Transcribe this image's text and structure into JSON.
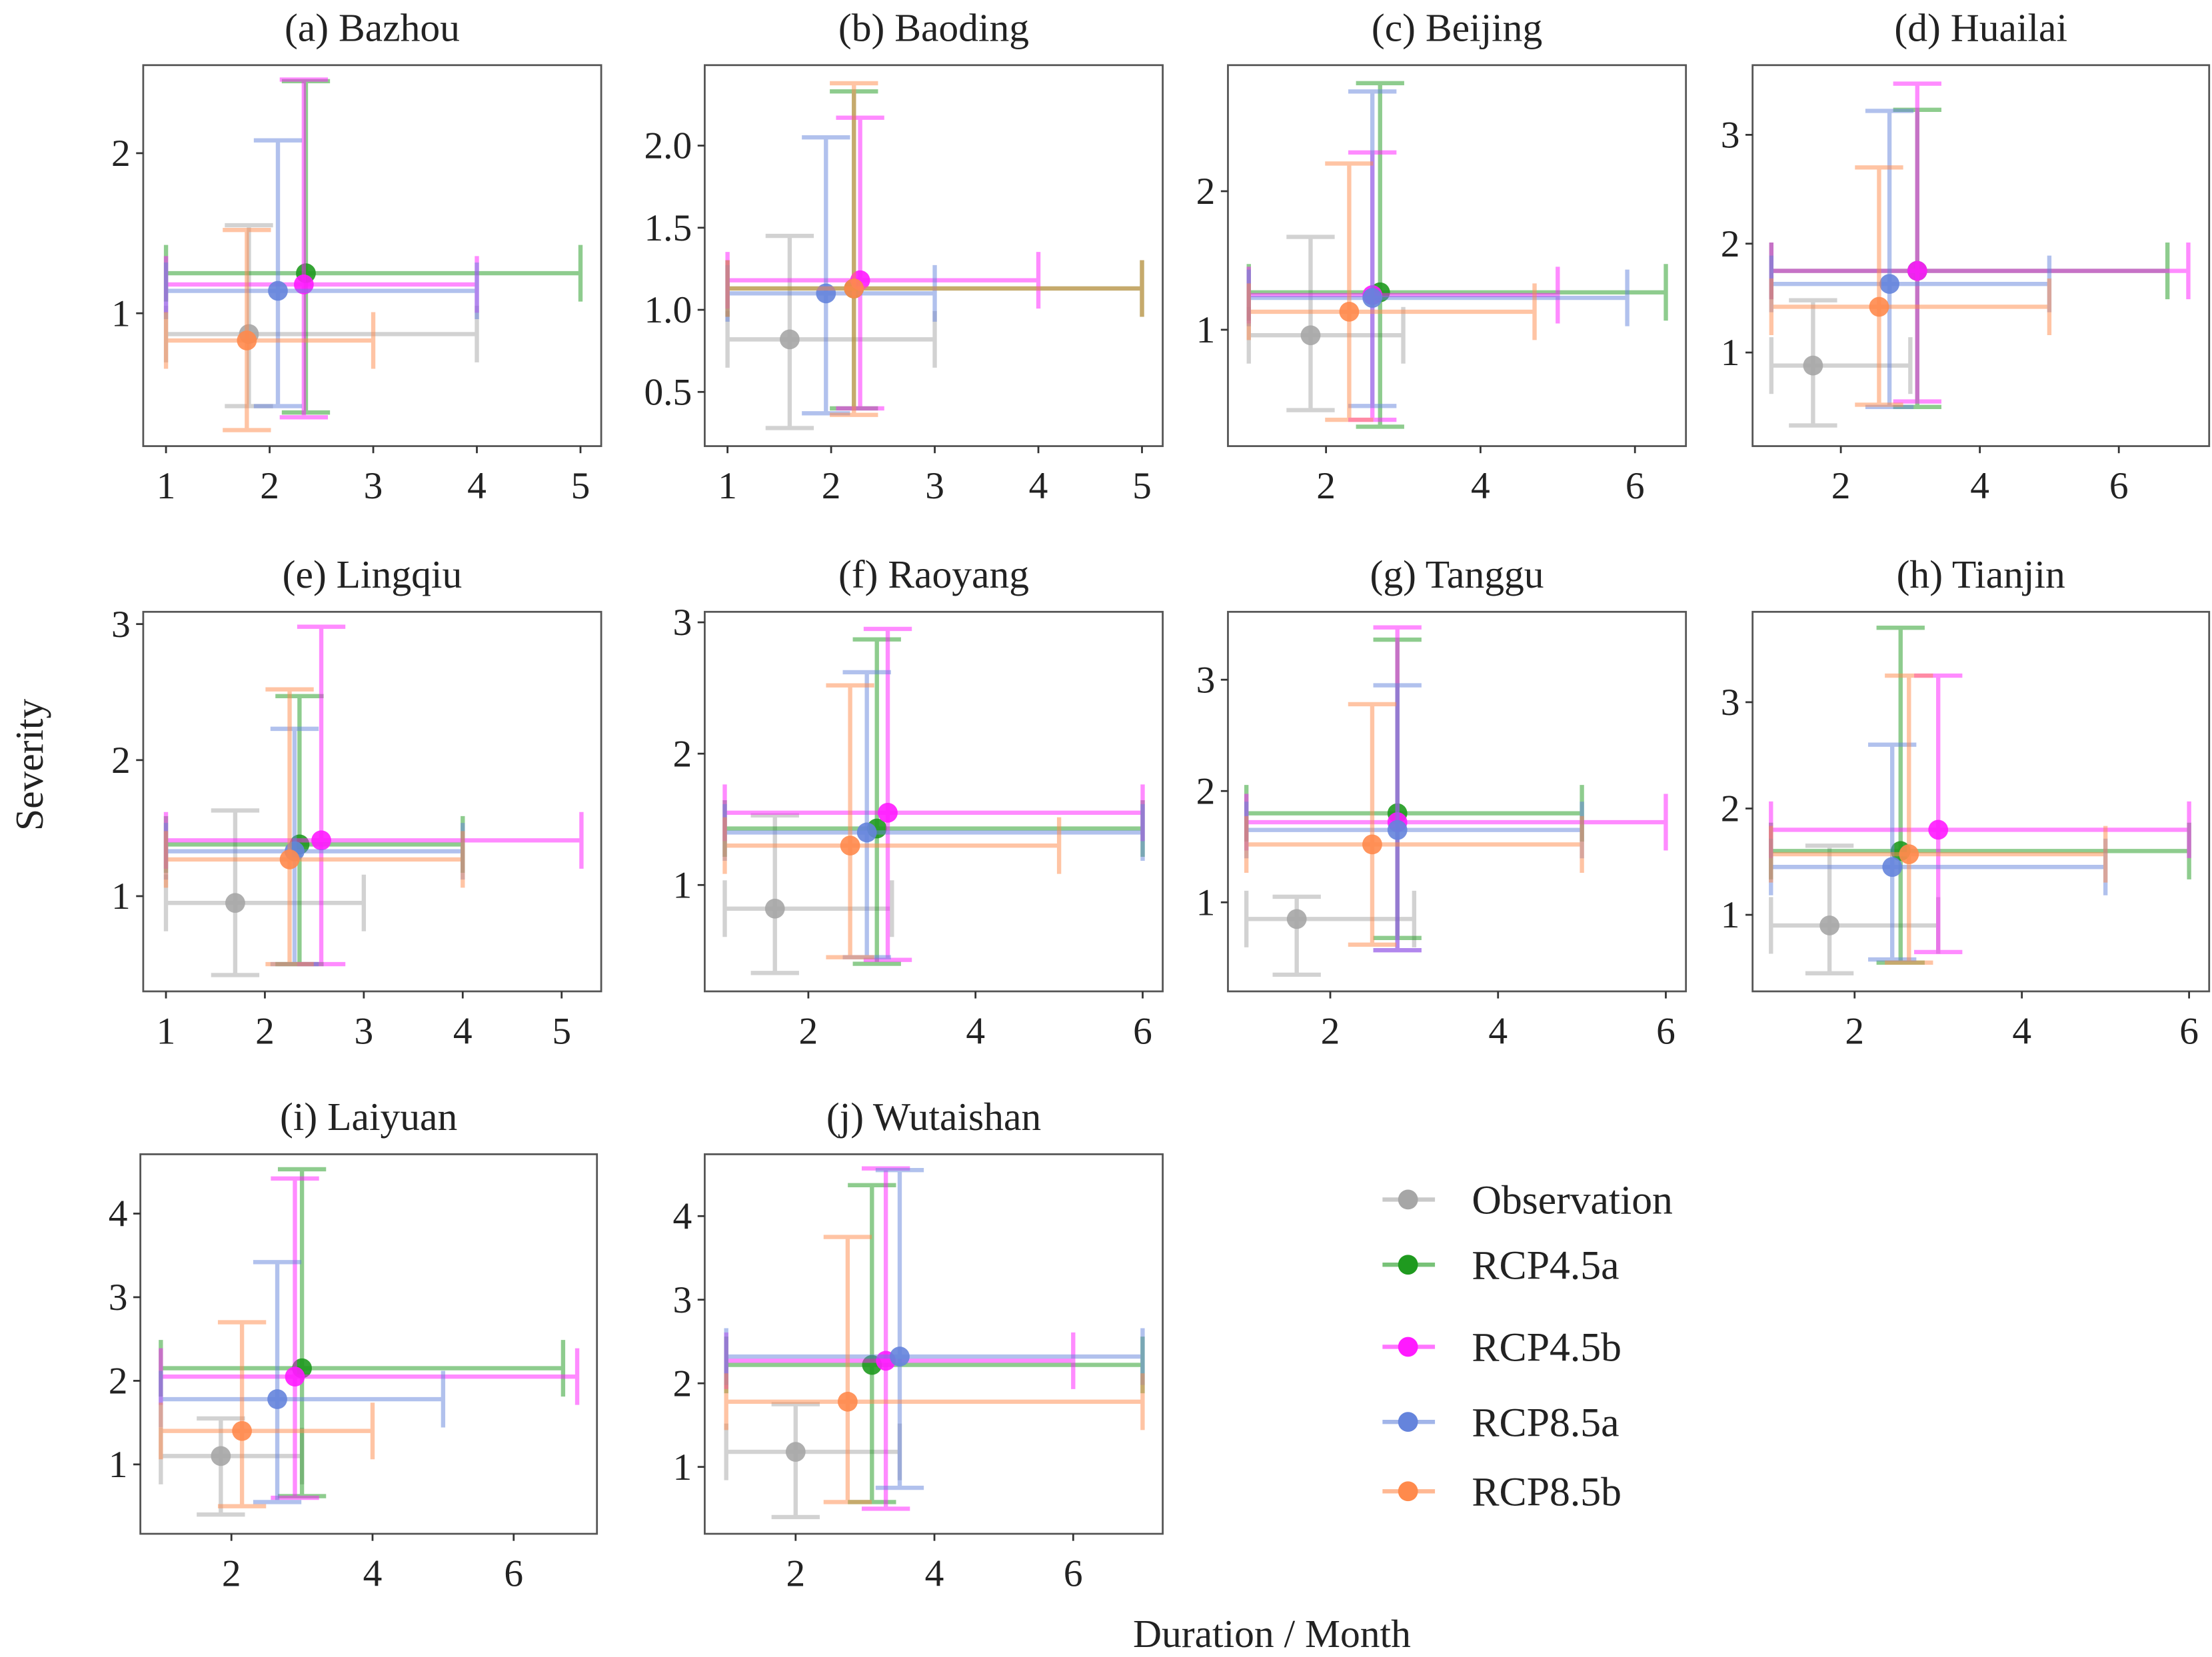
{
  "chart_data": {
    "type": "scatter",
    "subtype": "errorbar-crosses",
    "xlabel": "Duration / Month",
    "ylabel": "Severity",
    "legend": {
      "placement": "bottom-right",
      "series": [
        {
          "name": "Observation",
          "color": "#a6a6a6"
        },
        {
          "name": "RCP4.5a",
          "color": "#1f9a1f"
        },
        {
          "name": "RCP4.5b",
          "color": "#ff1aff"
        },
        {
          "name": "RCP8.5a",
          "color": "#6584dc"
        },
        {
          "name": "RCP8.5b",
          "color": "#ff8a4c"
        }
      ]
    },
    "panels": [
      {
        "title": "(a) Bazhou",
        "xlim": [
          0.78,
          5.2
        ],
        "ylim": [
          0.17,
          2.55
        ],
        "xticks": [
          1,
          2,
          3,
          4,
          5
        ],
        "yticks": [
          1,
          2
        ],
        "series": [
          {
            "x": 1.8,
            "y": 0.87,
            "xr": [
              1,
              4
            ],
            "yr": [
              0.42,
              1.55
            ]
          },
          {
            "x": 2.35,
            "y": 1.25,
            "xr": [
              1,
              5
            ],
            "yr": [
              0.38,
              2.45
            ]
          },
          {
            "x": 2.33,
            "y": 1.18,
            "xr": [
              1,
              4
            ],
            "yr": [
              0.35,
              2.46
            ]
          },
          {
            "x": 2.08,
            "y": 1.14,
            "xr": [
              1,
              4
            ],
            "yr": [
              0.42,
              2.08
            ]
          },
          {
            "x": 1.78,
            "y": 0.83,
            "xr": [
              1,
              3
            ],
            "yr": [
              0.27,
              1.52
            ]
          }
        ]
      },
      {
        "title": "(b) Baoding",
        "xlim": [
          0.78,
          5.2
        ],
        "ylim": [
          0.17,
          2.49
        ],
        "xticks": [
          1,
          2,
          3,
          4,
          5
        ],
        "yticks": [
          "0.5",
          "1.0",
          "1.5",
          "2.0"
        ],
        "series": [
          {
            "x": 1.6,
            "y": 0.82,
            "xr": [
              1,
              3
            ],
            "yr": [
              0.28,
              1.45
            ]
          },
          {
            "x": 2.22,
            "y": 1.13,
            "xr": [
              1,
              5
            ],
            "yr": [
              0.4,
              2.33
            ]
          },
          {
            "x": 2.28,
            "y": 1.18,
            "xr": [
              1,
              4
            ],
            "yr": [
              0.4,
              2.17
            ]
          },
          {
            "x": 1.95,
            "y": 1.1,
            "xr": [
              1,
              3
            ],
            "yr": [
              0.37,
              2.05
            ]
          },
          {
            "x": 2.22,
            "y": 1.13,
            "xr": [
              1,
              5
            ],
            "yr": [
              0.36,
              2.38
            ]
          }
        ]
      },
      {
        "title": "(c) Beijing",
        "xlim": [
          0.73,
          6.66
        ],
        "ylim": [
          0.16,
          2.91
        ],
        "xticks": [
          2,
          4,
          6
        ],
        "yticks": [
          1,
          2
        ],
        "series": [
          {
            "x": 1.8,
            "y": 0.96,
            "xr": [
              1,
              3
            ],
            "yr": [
              0.42,
              1.67
            ]
          },
          {
            "x": 2.7,
            "y": 1.27,
            "xr": [
              1,
              6.4
            ],
            "yr": [
              0.3,
              2.78
            ]
          },
          {
            "x": 2.6,
            "y": 1.25,
            "xr": [
              1,
              5
            ],
            "yr": [
              0.35,
              2.28
            ]
          },
          {
            "x": 2.6,
            "y": 1.23,
            "xr": [
              1,
              5.9
            ],
            "yr": [
              0.45,
              2.72
            ]
          },
          {
            "x": 2.3,
            "y": 1.13,
            "xr": [
              1,
              4.7
            ],
            "yr": [
              0.35,
              2.2
            ]
          }
        ]
      },
      {
        "title": "(d) Huailai",
        "xlim": [
          0.73,
          7.3
        ],
        "ylim": [
          0.14,
          3.64
        ],
        "xticks": [
          2,
          4,
          6
        ],
        "yticks": [
          1,
          2,
          3
        ],
        "series": [
          {
            "x": 1.6,
            "y": 0.88,
            "xr": [
              1,
              3
            ],
            "yr": [
              0.33,
              1.48
            ]
          },
          {
            "x": 3.1,
            "y": 1.75,
            "xr": [
              1,
              6.7
            ],
            "yr": [
              0.5,
              3.23
            ]
          },
          {
            "x": 3.1,
            "y": 1.75,
            "xr": [
              1,
              7
            ],
            "yr": [
              0.55,
              3.47
            ]
          },
          {
            "x": 2.7,
            "y": 1.63,
            "xr": [
              1,
              5
            ],
            "yr": [
              0.5,
              3.22
            ]
          },
          {
            "x": 2.55,
            "y": 1.42,
            "xr": [
              1,
              5
            ],
            "yr": [
              0.52,
              2.7
            ]
          }
        ]
      },
      {
        "title": "(e) Lingqiu",
        "xlim": [
          0.77,
          5.4
        ],
        "ylim": [
          0.3,
          3.09
        ],
        "xticks": [
          1,
          2,
          3,
          4,
          5
        ],
        "yticks": [
          1,
          2,
          3
        ],
        "series": [
          {
            "x": 1.7,
            "y": 0.95,
            "xr": [
              1,
              3
            ],
            "yr": [
              0.42,
              1.63
            ]
          },
          {
            "x": 2.35,
            "y": 1.38,
            "xr": [
              1,
              4
            ],
            "yr": [
              0.5,
              2.47
            ]
          },
          {
            "x": 2.57,
            "y": 1.41,
            "xr": [
              1,
              5.2
            ],
            "yr": [
              0.5,
              2.98
            ]
          },
          {
            "x": 2.3,
            "y": 1.33,
            "xr": [
              1,
              4
            ],
            "yr": [
              0.5,
              2.23
            ]
          },
          {
            "x": 2.25,
            "y": 1.27,
            "xr": [
              1,
              4
            ],
            "yr": [
              0.5,
              2.52
            ]
          }
        ]
      },
      {
        "title": "(f) Raoyang",
        "xlim": [
          0.76,
          6.24
        ],
        "ylim": [
          0.19,
          3.08
        ],
        "xticks": [
          2,
          4,
          6
        ],
        "yticks": [
          1,
          2,
          3
        ],
        "series": [
          {
            "x": 1.6,
            "y": 0.82,
            "xr": [
              1,
              3
            ],
            "yr": [
              0.33,
              1.53
            ]
          },
          {
            "x": 2.82,
            "y": 1.43,
            "xr": [
              1,
              6
            ],
            "yr": [
              0.4,
              2.87
            ]
          },
          {
            "x": 2.95,
            "y": 1.55,
            "xr": [
              1,
              6
            ],
            "yr": [
              0.43,
              2.95
            ]
          },
          {
            "x": 2.7,
            "y": 1.4,
            "xr": [
              1,
              6
            ],
            "yr": [
              0.45,
              2.62
            ]
          },
          {
            "x": 2.5,
            "y": 1.3,
            "xr": [
              1,
              5
            ],
            "yr": [
              0.45,
              2.52
            ]
          }
        ]
      },
      {
        "title": "(g) Tanggu",
        "xlim": [
          0.78,
          6.24
        ],
        "ylim": [
          0.2,
          3.61
        ],
        "xticks": [
          2,
          4,
          6
        ],
        "yticks": [
          1,
          2,
          3
        ],
        "series": [
          {
            "x": 1.6,
            "y": 0.85,
            "xr": [
              1,
              3
            ],
            "yr": [
              0.35,
              1.05
            ]
          },
          {
            "x": 2.8,
            "y": 1.8,
            "xr": [
              1,
              5
            ],
            "yr": [
              0.68,
              3.36
            ]
          },
          {
            "x": 2.8,
            "y": 1.72,
            "xr": [
              1,
              6
            ],
            "yr": [
              0.57,
              3.47
            ]
          },
          {
            "x": 2.8,
            "y": 1.65,
            "xr": [
              1,
              5
            ],
            "yr": [
              0.57,
              2.95
            ]
          },
          {
            "x": 2.5,
            "y": 1.52,
            "xr": [
              1,
              5
            ],
            "yr": [
              0.62,
              2.78
            ]
          }
        ]
      },
      {
        "title": "(h) Tianjin",
        "xlim": [
          0.78,
          6.24
        ],
        "ylim": [
          0.28,
          3.85
        ],
        "xticks": [
          2,
          4,
          6
        ],
        "yticks": [
          1,
          2,
          3
        ],
        "series": [
          {
            "x": 1.7,
            "y": 0.9,
            "xr": [
              1,
              3
            ],
            "yr": [
              0.45,
              1.65
            ]
          },
          {
            "x": 2.55,
            "y": 1.6,
            "xr": [
              1,
              6
            ],
            "yr": [
              0.55,
              3.7
            ]
          },
          {
            "x": 3.0,
            "y": 1.8,
            "xr": [
              1,
              6
            ],
            "yr": [
              0.65,
              3.25
            ]
          },
          {
            "x": 2.45,
            "y": 1.45,
            "xr": [
              1,
              5
            ],
            "yr": [
              0.58,
              2.6
            ]
          },
          {
            "x": 2.65,
            "y": 1.57,
            "xr": [
              1,
              5
            ],
            "yr": [
              0.55,
              3.25
            ]
          }
        ]
      },
      {
        "title": "(i) Laiyuan",
        "xlim": [
          0.71,
          7.18
        ],
        "ylim": [
          0.17,
          4.71
        ],
        "xticks": [
          2,
          4,
          6
        ],
        "yticks": [
          1,
          2,
          3,
          4
        ],
        "series": [
          {
            "x": 1.85,
            "y": 1.1,
            "xr": [
              1,
              3
            ],
            "yr": [
              0.4,
              1.55
            ]
          },
          {
            "x": 3.0,
            "y": 2.15,
            "xr": [
              1,
              6.7
            ],
            "yr": [
              0.62,
              4.53
            ]
          },
          {
            "x": 2.9,
            "y": 2.05,
            "xr": [
              1,
              6.9
            ],
            "yr": [
              0.6,
              4.42
            ]
          },
          {
            "x": 2.65,
            "y": 1.78,
            "xr": [
              1,
              5
            ],
            "yr": [
              0.55,
              3.42
            ]
          },
          {
            "x": 2.15,
            "y": 1.4,
            "xr": [
              1,
              4
            ],
            "yr": [
              0.5,
              2.7
            ]
          }
        ]
      },
      {
        "title": "(j) Wutaishan",
        "xlim": [
          0.69,
          7.29
        ],
        "ylim": [
          0.2,
          4.74
        ],
        "xticks": [
          2,
          4,
          6
        ],
        "yticks": [
          1,
          2,
          3,
          4
        ],
        "series": [
          {
            "x": 2.0,
            "y": 1.18,
            "xr": [
              1,
              3.5
            ],
            "yr": [
              0.4,
              1.75
            ]
          },
          {
            "x": 3.1,
            "y": 2.22,
            "xr": [
              1,
              7
            ],
            "yr": [
              0.58,
              4.37
            ]
          },
          {
            "x": 3.3,
            "y": 2.27,
            "xr": [
              1,
              6
            ],
            "yr": [
              0.5,
              4.57
            ]
          },
          {
            "x": 3.5,
            "y": 2.32,
            "xr": [
              1,
              7
            ],
            "yr": [
              0.75,
              4.55
            ]
          },
          {
            "x": 2.75,
            "y": 1.78,
            "xr": [
              1,
              7
            ],
            "yr": [
              0.58,
              3.75
            ]
          }
        ]
      }
    ]
  }
}
